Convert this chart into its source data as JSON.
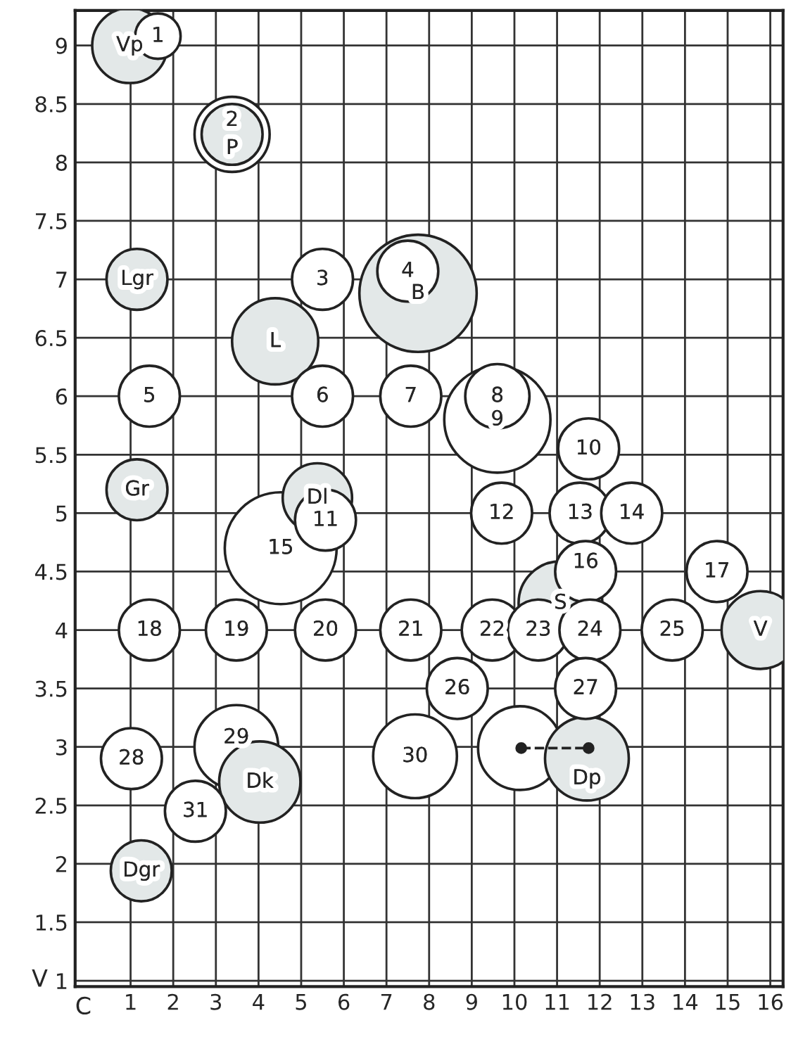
{
  "chart_data": {
    "type": "bubble",
    "xlabel": "C",
    "ylabel": "V",
    "xlim": [
      -0.3,
      16.3
    ],
    "ylim": [
      0.95,
      9.3
    ],
    "xticks": [
      1,
      2,
      3,
      4,
      5,
      6,
      7,
      8,
      9,
      10,
      11,
      12,
      13,
      14,
      15,
      16
    ],
    "yticks": [
      1,
      1.5,
      2,
      2.5,
      3,
      3.5,
      4,
      4.5,
      5,
      5.5,
      6,
      6.5,
      7,
      7.5,
      8,
      8.5,
      9
    ],
    "grid": true,
    "series": [
      {
        "x": [
          7.74,
          4.52,
          9.6,
          4.39,
          11.08,
          3.38,
          3.38,
          0.98,
          7.67,
          10.13,
          11.7,
          3.48,
          4.03,
          15.77,
          5.38,
          1.15,
          1.15,
          1.25,
          1.64,
          5.5,
          7.5,
          1.44,
          5.5,
          7.57,
          9.6,
          11.74,
          5.57,
          9.7,
          11.54,
          12.75,
          11.67,
          14.75,
          1.44,
          3.48,
          5.57,
          7.57,
          9.48,
          10.56,
          11.77,
          13.7,
          8.66,
          11.67,
          1.02,
          2.52
        ],
        "values": [
          6.88,
          4.7,
          5.8,
          6.47,
          4.23,
          8.24,
          8.24,
          9.0,
          2.92,
          2.99,
          2.9,
          3.0,
          2.7,
          4.0,
          5.13,
          7.0,
          5.2,
          1.94,
          9.08,
          7.0,
          7.07,
          6.0,
          6.0,
          6.0,
          6.0,
          5.55,
          4.94,
          5.0,
          5.0,
          5.0,
          4.5,
          4.5,
          4.0,
          4.0,
          4.0,
          4.0,
          4.0,
          4.0,
          4.0,
          4.0,
          3.5,
          3.5,
          2.9,
          2.45
        ],
        "sizes": [
          1,
          0.91,
          0.82,
          0.54,
          0.51,
          0.41,
          0.27,
          0.41,
          0.51,
          0.51,
          0.51,
          0.51,
          0.48,
          0.44,
          0.35,
          0.27,
          0.27,
          0.27,
          0.15,
          0.27,
          0.27,
          0.27,
          0.27,
          0.27,
          0.3,
          0.27,
          0.27,
          0.27,
          0.27,
          0.27,
          0.27,
          0.27,
          0.27,
          0.27,
          0.27,
          0.27,
          0.27,
          0.27,
          0.27,
          0.27,
          0.27,
          0.27,
          0.27,
          0.27
        ],
        "colors": [
          "#e3e8e8",
          "#ffffff",
          "#ffffff",
          "#e3e8e8",
          "#e3e8e8",
          "#ffffff",
          "#e3e8e8",
          "#e3e8e8",
          "#ffffff",
          "#ffffff",
          "#e3e8e8",
          "#ffffff",
          "#e3e8e8",
          "#e3e8e8",
          "#e3e8e8",
          "#e3e8e8",
          "#e3e8e8",
          "#e3e8e8",
          "#ffffff",
          "#ffffff",
          "#ffffff",
          "#ffffff",
          "#ffffff",
          "#ffffff",
          "#ffffff",
          "#ffffff",
          "#ffffff",
          "#ffffff",
          "#ffffff",
          "#ffffff",
          "#ffffff",
          "#ffffff",
          "#ffffff",
          "#ffffff",
          "#ffffff",
          "#ffffff",
          "#ffffff",
          "#ffffff",
          "#ffffff",
          "#ffffff",
          "#ffffff",
          "#ffffff",
          "#ffffff",
          "#ffffff"
        ],
        "marker": "circle"
      },
      {
        "type": "line",
        "x": [
          10.16,
          11.74
        ],
        "values": [
          2.99,
          2.99
        ],
        "color": "#222222",
        "line_style": "dashed",
        "marker": "circle"
      }
    ],
    "annotations": [
      {
        "text": "B",
        "x": 7.74,
        "y": 6.88
      },
      {
        "text": "15",
        "x": 4.52,
        "y": 4.7
      },
      {
        "text": "9",
        "x": 9.6,
        "y": 5.8
      },
      {
        "text": "L",
        "x": 4.39,
        "y": 6.47
      },
      {
        "text": "S",
        "x": 11.08,
        "y": 4.23
      },
      {
        "text": "2",
        "x": 3.38,
        "y": 8.24
      },
      {
        "text": "P",
        "x": 3.38,
        "y": 8.24
      },
      {
        "text": "Vp",
        "x": 0.98,
        "y": 9.0
      },
      {
        "text": "30",
        "x": 7.67,
        "y": 2.92
      },
      {
        "text": "Dp",
        "x": 11.7,
        "y": 2.9
      },
      {
        "text": "29",
        "x": 3.48,
        "y": 3.0
      },
      {
        "text": "Dk",
        "x": 4.03,
        "y": 2.7
      },
      {
        "text": "V",
        "x": 15.77,
        "y": 4.0
      },
      {
        "text": "Dl",
        "x": 5.38,
        "y": 5.13
      },
      {
        "text": "Lgr",
        "x": 1.15,
        "y": 7.0
      },
      {
        "text": "Gr",
        "x": 1.15,
        "y": 5.2
      },
      {
        "text": "Dgr",
        "x": 1.25,
        "y": 1.94
      },
      {
        "text": "1",
        "x": 1.64,
        "y": 9.08
      },
      {
        "text": "3",
        "x": 5.5,
        "y": 7.0
      },
      {
        "text": "4",
        "x": 7.5,
        "y": 7.07
      },
      {
        "text": "5",
        "x": 1.44,
        "y": 6.0
      },
      {
        "text": "6",
        "x": 5.5,
        "y": 6.0
      },
      {
        "text": "7",
        "x": 7.57,
        "y": 6.0
      },
      {
        "text": "8",
        "x": 9.6,
        "y": 6.0
      },
      {
        "text": "10",
        "x": 11.74,
        "y": 5.55
      },
      {
        "text": "11",
        "x": 5.57,
        "y": 4.94
      },
      {
        "text": "12",
        "x": 9.7,
        "y": 5.0
      },
      {
        "text": "13",
        "x": 11.54,
        "y": 5.0
      },
      {
        "text": "14",
        "x": 12.75,
        "y": 5.0
      },
      {
        "text": "16",
        "x": 11.67,
        "y": 4.5
      },
      {
        "text": "17",
        "x": 14.75,
        "y": 4.5
      },
      {
        "text": "18",
        "x": 1.44,
        "y": 4.0
      },
      {
        "text": "19",
        "x": 3.48,
        "y": 4.0
      },
      {
        "text": "20",
        "x": 5.57,
        "y": 4.0
      },
      {
        "text": "21",
        "x": 7.57,
        "y": 4.0
      },
      {
        "text": "22",
        "x": 9.48,
        "y": 4.0
      },
      {
        "text": "23",
        "x": 10.56,
        "y": 4.0
      },
      {
        "text": "24",
        "x": 11.77,
        "y": 4.0
      },
      {
        "text": "25",
        "x": 13.7,
        "y": 4.0
      },
      {
        "text": "26",
        "x": 8.66,
        "y": 3.5
      },
      {
        "text": "27",
        "x": 11.67,
        "y": 3.5
      },
      {
        "text": "28",
        "x": 1.02,
        "y": 2.9
      },
      {
        "text": "31",
        "x": 2.52,
        "y": 2.45
      }
    ]
  }
}
